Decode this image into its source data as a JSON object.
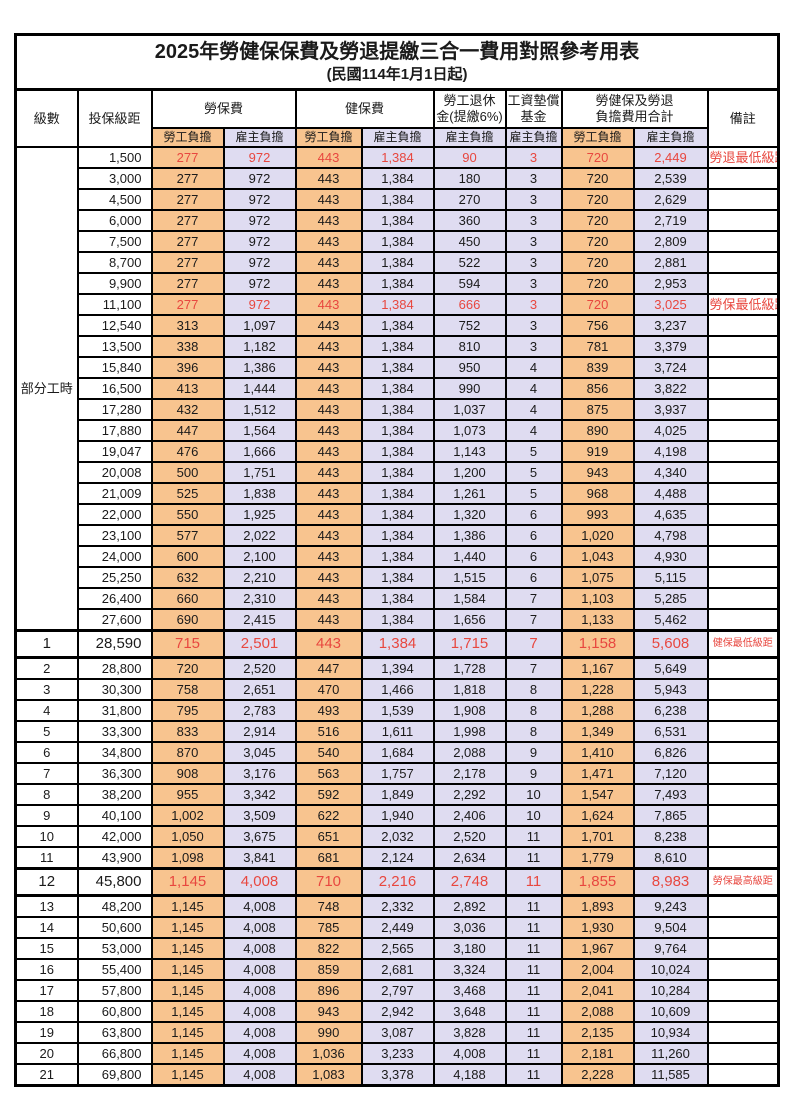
{
  "title": "2025年勞健保保費及勞退提繳三合一費用對照參考用表",
  "subtitle": "(民國114年1月1日起)",
  "labels": {
    "level": "級數",
    "bracket": "投保級距",
    "labor_ins": "勞保費",
    "health_ins": "健保費",
    "pension1": "勞工退休",
    "pension2": "金(提繳6%)",
    "wage_fund1": "工資墊償",
    "wage_fund2": "基金",
    "total1": "勞健保及勞退",
    "total2": "負擔費用合計",
    "remark": "備註",
    "employee": "勞工負擔",
    "employer": "雇主負擔"
  },
  "part_time_label": "部分工時",
  "part_time_rowspan": 23,
  "colors": {
    "employee_bg": "#F8C48F",
    "employer_bg": "#DFDCF1",
    "highlight_red": "#E8473F",
    "border": "#000000"
  },
  "row_fields": [
    "level",
    "bracket",
    "labor_ins_employee",
    "labor_ins_employer",
    "health_ins_employee",
    "health_ins_employer",
    "pension_employer",
    "wage_fund_employer",
    "total_employee",
    "total_employer",
    "remark"
  ],
  "red_rows": [
    0,
    7,
    23,
    34
  ],
  "big_rows": [
    23,
    34
  ],
  "rows": [
    [
      "",
      "1,500",
      "277",
      "972",
      "443",
      "1,384",
      "90",
      "3",
      "720",
      "2,449",
      "勞退最低級距"
    ],
    [
      "",
      "3,000",
      "277",
      "972",
      "443",
      "1,384",
      "180",
      "3",
      "720",
      "2,539",
      ""
    ],
    [
      "",
      "4,500",
      "277",
      "972",
      "443",
      "1,384",
      "270",
      "3",
      "720",
      "2,629",
      ""
    ],
    [
      "",
      "6,000",
      "277",
      "972",
      "443",
      "1,384",
      "360",
      "3",
      "720",
      "2,719",
      ""
    ],
    [
      "",
      "7,500",
      "277",
      "972",
      "443",
      "1,384",
      "450",
      "3",
      "720",
      "2,809",
      ""
    ],
    [
      "",
      "8,700",
      "277",
      "972",
      "443",
      "1,384",
      "522",
      "3",
      "720",
      "2,881",
      ""
    ],
    [
      "",
      "9,900",
      "277",
      "972",
      "443",
      "1,384",
      "594",
      "3",
      "720",
      "2,953",
      ""
    ],
    [
      "",
      "11,100",
      "277",
      "972",
      "443",
      "1,384",
      "666",
      "3",
      "720",
      "3,025",
      "勞保最低級距"
    ],
    [
      "",
      "12,540",
      "313",
      "1,097",
      "443",
      "1,384",
      "752",
      "3",
      "756",
      "3,237",
      ""
    ],
    [
      "",
      "13,500",
      "338",
      "1,182",
      "443",
      "1,384",
      "810",
      "3",
      "781",
      "3,379",
      ""
    ],
    [
      "",
      "15,840",
      "396",
      "1,386",
      "443",
      "1,384",
      "950",
      "4",
      "839",
      "3,724",
      ""
    ],
    [
      "",
      "16,500",
      "413",
      "1,444",
      "443",
      "1,384",
      "990",
      "4",
      "856",
      "3,822",
      ""
    ],
    [
      "",
      "17,280",
      "432",
      "1,512",
      "443",
      "1,384",
      "1,037",
      "4",
      "875",
      "3,937",
      ""
    ],
    [
      "",
      "17,880",
      "447",
      "1,564",
      "443",
      "1,384",
      "1,073",
      "4",
      "890",
      "4,025",
      ""
    ],
    [
      "",
      "19,047",
      "476",
      "1,666",
      "443",
      "1,384",
      "1,143",
      "5",
      "919",
      "4,198",
      ""
    ],
    [
      "",
      "20,008",
      "500",
      "1,751",
      "443",
      "1,384",
      "1,200",
      "5",
      "943",
      "4,340",
      ""
    ],
    [
      "",
      "21,009",
      "525",
      "1,838",
      "443",
      "1,384",
      "1,261",
      "5",
      "968",
      "4,488",
      ""
    ],
    [
      "",
      "22,000",
      "550",
      "1,925",
      "443",
      "1,384",
      "1,320",
      "6",
      "993",
      "4,635",
      ""
    ],
    [
      "",
      "23,100",
      "577",
      "2,022",
      "443",
      "1,384",
      "1,386",
      "6",
      "1,020",
      "4,798",
      ""
    ],
    [
      "",
      "24,000",
      "600",
      "2,100",
      "443",
      "1,384",
      "1,440",
      "6",
      "1,043",
      "4,930",
      ""
    ],
    [
      "",
      "25,250",
      "632",
      "2,210",
      "443",
      "1,384",
      "1,515",
      "6",
      "1,075",
      "5,115",
      ""
    ],
    [
      "",
      "26,400",
      "660",
      "2,310",
      "443",
      "1,384",
      "1,584",
      "7",
      "1,103",
      "5,285",
      ""
    ],
    [
      "",
      "27,600",
      "690",
      "2,415",
      "443",
      "1,384",
      "1,656",
      "7",
      "1,133",
      "5,462",
      ""
    ],
    [
      "1",
      "28,590",
      "715",
      "2,501",
      "443",
      "1,384",
      "1,715",
      "7",
      "1,158",
      "5,608",
      "健保最低級距"
    ],
    [
      "2",
      "28,800",
      "720",
      "2,520",
      "447",
      "1,394",
      "1,728",
      "7",
      "1,167",
      "5,649",
      ""
    ],
    [
      "3",
      "30,300",
      "758",
      "2,651",
      "470",
      "1,466",
      "1,818",
      "8",
      "1,228",
      "5,943",
      ""
    ],
    [
      "4",
      "31,800",
      "795",
      "2,783",
      "493",
      "1,539",
      "1,908",
      "8",
      "1,288",
      "6,238",
      ""
    ],
    [
      "5",
      "33,300",
      "833",
      "2,914",
      "516",
      "1,611",
      "1,998",
      "8",
      "1,349",
      "6,531",
      ""
    ],
    [
      "6",
      "34,800",
      "870",
      "3,045",
      "540",
      "1,684",
      "2,088",
      "9",
      "1,410",
      "6,826",
      ""
    ],
    [
      "7",
      "36,300",
      "908",
      "3,176",
      "563",
      "1,757",
      "2,178",
      "9",
      "1,471",
      "7,120",
      ""
    ],
    [
      "8",
      "38,200",
      "955",
      "3,342",
      "592",
      "1,849",
      "2,292",
      "10",
      "1,547",
      "7,493",
      ""
    ],
    [
      "9",
      "40,100",
      "1,002",
      "3,509",
      "622",
      "1,940",
      "2,406",
      "10",
      "1,624",
      "7,865",
      ""
    ],
    [
      "10",
      "42,000",
      "1,050",
      "3,675",
      "651",
      "2,032",
      "2,520",
      "11",
      "1,701",
      "8,238",
      ""
    ],
    [
      "11",
      "43,900",
      "1,098",
      "3,841",
      "681",
      "2,124",
      "2,634",
      "11",
      "1,779",
      "8,610",
      ""
    ],
    [
      "12",
      "45,800",
      "1,145",
      "4,008",
      "710",
      "2,216",
      "2,748",
      "11",
      "1,855",
      "8,983",
      "勞保最高級距"
    ],
    [
      "13",
      "48,200",
      "1,145",
      "4,008",
      "748",
      "2,332",
      "2,892",
      "11",
      "1,893",
      "9,243",
      ""
    ],
    [
      "14",
      "50,600",
      "1,145",
      "4,008",
      "785",
      "2,449",
      "3,036",
      "11",
      "1,930",
      "9,504",
      ""
    ],
    [
      "15",
      "53,000",
      "1,145",
      "4,008",
      "822",
      "2,565",
      "3,180",
      "11",
      "1,967",
      "9,764",
      ""
    ],
    [
      "16",
      "55,400",
      "1,145",
      "4,008",
      "859",
      "2,681",
      "3,324",
      "11",
      "2,004",
      "10,024",
      ""
    ],
    [
      "17",
      "57,800",
      "1,145",
      "4,008",
      "896",
      "2,797",
      "3,468",
      "11",
      "2,041",
      "10,284",
      ""
    ],
    [
      "18",
      "60,800",
      "1,145",
      "4,008",
      "943",
      "2,942",
      "3,648",
      "11",
      "2,088",
      "10,609",
      ""
    ],
    [
      "19",
      "63,800",
      "1,145",
      "4,008",
      "990",
      "3,087",
      "3,828",
      "11",
      "2,135",
      "10,934",
      ""
    ],
    [
      "20",
      "66,800",
      "1,145",
      "4,008",
      "1,036",
      "3,233",
      "4,008",
      "11",
      "2,181",
      "11,260",
      ""
    ],
    [
      "21",
      "69,800",
      "1,145",
      "4,008",
      "1,083",
      "3,378",
      "4,188",
      "11",
      "2,228",
      "11,585",
      ""
    ]
  ]
}
